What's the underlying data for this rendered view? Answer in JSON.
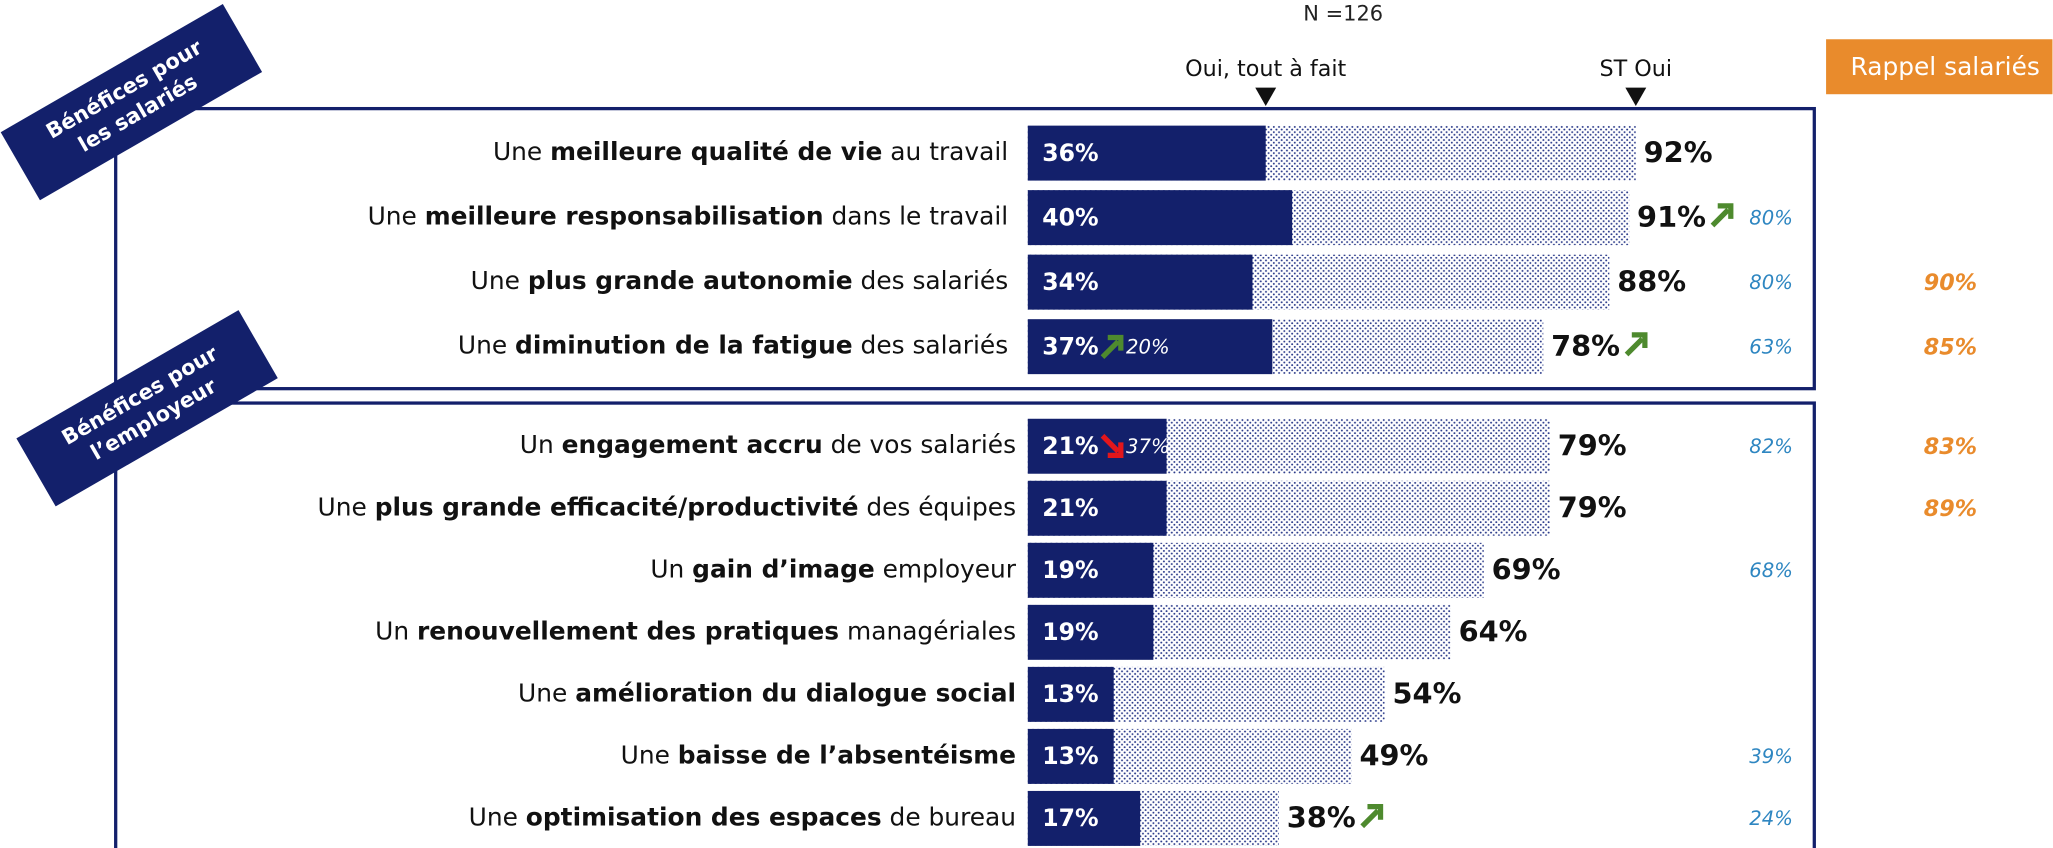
{
  "chart_data": {
    "type": "bar",
    "orientation": "horizontal",
    "note": "N =126",
    "xlim": [
      0,
      100
    ],
    "groups": [
      {
        "label": [
          "Bénéfices pour",
          "les salariés"
        ],
        "categories": [
          [
            {
              "text": "Une "
            },
            {
              "text": "meilleure qualité de vie",
              "bold": true
            },
            {
              "text": " au travail"
            }
          ],
          [
            {
              "text": "Une "
            },
            {
              "text": "meilleure responsabilisation",
              "bold": true
            },
            {
              "text": " dans le travail"
            }
          ],
          [
            {
              "text": "Une "
            },
            {
              "text": "plus grande autonomie",
              "bold": true
            },
            {
              "text": " des salariés"
            }
          ],
          [
            {
              "text": "Une "
            },
            {
              "text": "diminution de la fatigue",
              "bold": true
            },
            {
              "text": " des salariés"
            }
          ]
        ]
      },
      {
        "label": [
          "Bénéfices pour",
          "l’employeur"
        ],
        "categories": [
          [
            {
              "text": "Un "
            },
            {
              "text": "engagement accru",
              "bold": true
            },
            {
              "text": " de vos salariés"
            }
          ],
          [
            {
              "text": "Une "
            },
            {
              "text": "plus grande efficacité/productivité",
              "bold": true
            },
            {
              "text": " des équipes"
            }
          ],
          [
            {
              "text": "Un "
            },
            {
              "text": "gain d’image",
              "bold": true
            },
            {
              "text": " employeur"
            }
          ],
          [
            {
              "text": "Un "
            },
            {
              "text": "renouvellement des pratiques",
              "bold": true
            },
            {
              "text": " managériales"
            }
          ],
          [
            {
              "text": "Une "
            },
            {
              "text": "amélioration du dialogue social",
              "bold": true
            }
          ],
          [
            {
              "text": "Une "
            },
            {
              "text": "baisse de l’absentéisme",
              "bold": true
            }
          ],
          [
            {
              "text": "Une "
            },
            {
              "text": "optimisation des espaces",
              "bold": true
            },
            {
              "text": " de bureau"
            }
          ]
        ]
      }
    ],
    "series": [
      {
        "name": "Oui, tout à fait",
        "color": "#13206b",
        "values": [
          36,
          40,
          34,
          37,
          21,
          21,
          19,
          19,
          13,
          13,
          17
        ],
        "value_labels": [
          "36%",
          "40%",
          "34%",
          "37%",
          "21%",
          "21%",
          "19%",
          "19%",
          "13%",
          "13%",
          "17%"
        ],
        "trend": [
          null,
          null,
          null,
          "up",
          "down",
          null,
          null,
          null,
          null,
          null,
          null
        ],
        "previous": [
          null,
          null,
          null,
          20,
          37,
          null,
          null,
          null,
          null,
          null,
          null
        ],
        "previous_labels": [
          null,
          null,
          null,
          "20%",
          "37%",
          null,
          null,
          null,
          null,
          null,
          null
        ]
      },
      {
        "name": "ST Oui",
        "color": "#2a3a8a",
        "values": [
          92,
          91,
          88,
          78,
          79,
          79,
          69,
          64,
          54,
          49,
          38
        ],
        "value_labels": [
          "92%",
          "91%",
          "88%",
          "78%",
          "79%",
          "79%",
          "69%",
          "64%",
          "54%",
          "49%",
          "38%"
        ],
        "trend": [
          null,
          "up",
          null,
          "up",
          null,
          null,
          null,
          null,
          null,
          null,
          "up"
        ],
        "previous": [
          null,
          80,
          80,
          63,
          82,
          null,
          68,
          null,
          null,
          39,
          24
        ],
        "previous_labels": [
          null,
          "80%",
          "80%",
          "63%",
          "82%",
          null,
          "68%",
          null,
          null,
          "39%",
          "24%"
        ],
        "previous_color": "#2e86c1"
      }
    ],
    "recall": {
      "title": "Rappel salariés",
      "color": "#e98b2c",
      "values": [
        null,
        null,
        90,
        85,
        83,
        89,
        null,
        null,
        null,
        null,
        null
      ],
      "value_labels": [
        null,
        null,
        "90%",
        "85%",
        "83%",
        "89%",
        null,
        null,
        null,
        null,
        null
      ]
    },
    "trend_colors": {
      "up": "#4e8a2e",
      "down": "#e3161b"
    }
  }
}
